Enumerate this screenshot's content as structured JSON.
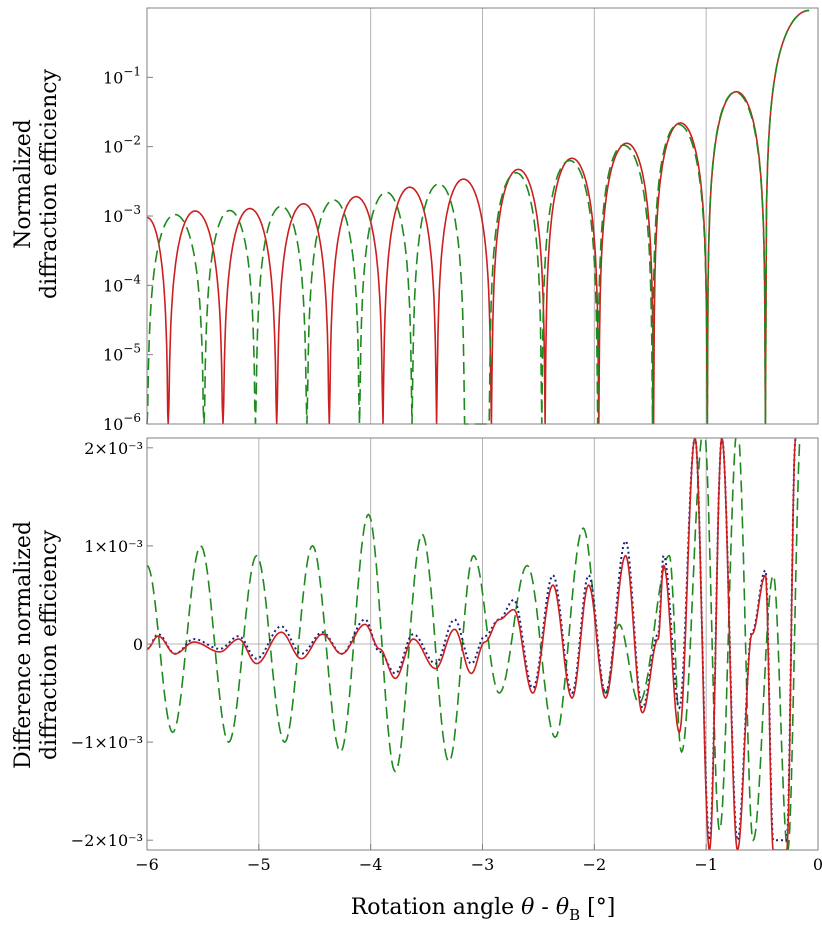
{
  "chart_data": [
    {
      "type": "line",
      "id": "top",
      "yscale": "log",
      "ylabel_lines": [
        "Normalized",
        "diffraction efficiency"
      ],
      "xlim": [
        -6,
        0
      ],
      "ylim": [
        1e-06,
        1
      ],
      "ytick_exponents": [
        "-1",
        "-2",
        "-3",
        "-4",
        "-5",
        "-6"
      ],
      "ytick_base": "10",
      "xgrid": [
        -4,
        -3,
        -2,
        -1
      ],
      "series": [
        {
          "name": "red-solid",
          "color": "#cc1f1f",
          "dash": "",
          "zeros": [
            -5.81,
            -5.32,
            -4.84,
            -4.37,
            -3.89,
            -3.41,
            -2.92,
            -2.44,
            -1.96,
            -1.47,
            -0.99,
            -0.47
          ],
          "peaks": [
            [
              -6.0,
              0.00095
            ],
            [
              -5.57,
              0.00118
            ],
            [
              -5.08,
              0.00128
            ],
            [
              -4.6,
              0.0015
            ],
            [
              -4.13,
              0.0019
            ],
            [
              -3.65,
              0.0026
            ],
            [
              -3.17,
              0.0034
            ],
            [
              -2.68,
              0.0047
            ],
            [
              -2.2,
              0.0068
            ],
            [
              -1.71,
              0.0112
            ],
            [
              -1.23,
              0.022
            ],
            [
              -0.73,
              0.062
            ],
            [
              -0.08,
              0.92
            ]
          ]
        },
        {
          "name": "green-dashed",
          "color": "#1e8a1e",
          "dash": "12,6",
          "zeros": [
            -6.0,
            -5.49,
            -5.03,
            -4.57,
            -4.1,
            -3.63,
            -3.16,
            -2.94,
            -2.47,
            -1.97,
            -1.48,
            -0.99,
            -0.47
          ],
          "peaks": [
            [
              -5.75,
              0.00105
            ],
            [
              -5.26,
              0.0012
            ],
            [
              -4.8,
              0.00138
            ],
            [
              -4.33,
              0.0017
            ],
            [
              -3.86,
              0.0022
            ],
            [
              -3.39,
              0.0029
            ],
            [
              -2.7,
              0.0042
            ],
            [
              -2.22,
              0.0063
            ],
            [
              -1.74,
              0.0105
            ],
            [
              -1.25,
              0.021
            ],
            [
              -0.74,
              0.061
            ],
            [
              -0.08,
              0.92
            ]
          ]
        }
      ]
    },
    {
      "type": "line",
      "id": "bottom",
      "yscale": "linear",
      "ylabel_lines": [
        "Difference normalized",
        "diffraction efficiency"
      ],
      "xlabel": "Rotation angle",
      "xlabel_theta": "θ",
      "xlabel_minus": " - ",
      "xlabel_thetaB": "θ",
      "xlabel_sub": "B",
      "xlabel_unit": " [°]",
      "xlim": [
        -6,
        0
      ],
      "ylim": [
        -0.0021,
        0.0021
      ],
      "xticks": [
        "−6",
        "−5",
        "−4",
        "−3",
        "−2",
        "−1",
        "0"
      ],
      "ytick_labels": [
        "2×10⁻³",
        "1×10⁻³",
        "0",
        "−1×10⁻³",
        "−2×10⁻³"
      ],
      "xgrid": [
        -5,
        -4,
        -3,
        -2,
        -1
      ],
      "series": [
        {
          "name": "green-dashed",
          "color": "#1e8a1e",
          "dash": "12,6",
          "extrema": [
            [
              -6.0,
              0.0008
            ],
            [
              -5.77,
              -0.0009
            ],
            [
              -5.52,
              0.001
            ],
            [
              -5.27,
              -0.001
            ],
            [
              -5.02,
              0.0009
            ],
            [
              -4.77,
              -0.001
            ],
            [
              -4.52,
              0.001
            ],
            [
              -4.27,
              -0.0011
            ],
            [
              -4.02,
              0.00132
            ],
            [
              -3.78,
              -0.0013
            ],
            [
              -3.54,
              0.00112
            ],
            [
              -3.3,
              -0.0012
            ],
            [
              -3.08,
              0.0009
            ],
            [
              -2.85,
              -0.0005
            ],
            [
              -2.6,
              0.0008
            ],
            [
              -2.35,
              -0.00095
            ],
            [
              -2.1,
              0.00118
            ],
            [
              -1.9,
              -0.0005
            ],
            [
              -1.78,
              0.0002
            ],
            [
              -1.6,
              -0.0006
            ],
            [
              -1.33,
              0.0009
            ],
            [
              -1.22,
              -0.0011
            ],
            [
              -1.02,
              0.0022
            ],
            [
              -0.88,
              -0.0019
            ],
            [
              -0.72,
              0.0022
            ],
            [
              -0.58,
              -0.002
            ],
            [
              -0.4,
              0.0007
            ],
            [
              -0.27,
              -0.0021
            ],
            [
              -0.15,
              0.0022
            ]
          ]
        },
        {
          "name": "blue-dotted",
          "color": "#1a237e",
          "dash": "2,3",
          "extrema": [
            [
              -6.0,
              -5e-05
            ],
            [
              -5.9,
              0.0001
            ],
            [
              -5.75,
              -0.0001
            ],
            [
              -5.58,
              5e-05
            ],
            [
              -5.35,
              -5e-05
            ],
            [
              -5.18,
              8e-05
            ],
            [
              -5.02,
              -0.00015
            ],
            [
              -4.8,
              0.00018
            ],
            [
              -4.62,
              -0.0001
            ],
            [
              -4.43,
              0.00012
            ],
            [
              -4.26,
              -0.0001
            ],
            [
              -4.05,
              0.00025
            ],
            [
              -3.92,
              -8e-05
            ],
            [
              -3.78,
              -0.0003
            ],
            [
              -3.62,
              0.0001
            ],
            [
              -3.42,
              -0.0002
            ],
            [
              -3.25,
              0.00025
            ],
            [
              -3.1,
              -0.0002
            ],
            [
              -2.98,
              8e-05
            ],
            [
              -2.85,
              0.00025
            ],
            [
              -2.72,
              0.00045
            ],
            [
              -2.55,
              -0.00045
            ],
            [
              -2.37,
              0.0007
            ],
            [
              -2.2,
              -0.0005
            ],
            [
              -2.05,
              0.0007
            ],
            [
              -1.9,
              -0.0005
            ],
            [
              -1.72,
              0.00105
            ],
            [
              -1.57,
              -0.00065
            ],
            [
              -1.43,
              0.0001
            ],
            [
              -1.38,
              0.0009
            ],
            [
              -1.24,
              -0.00065
            ],
            [
              -1.1,
              0.0021
            ],
            [
              -0.97,
              -0.002
            ],
            [
              -0.86,
              0.0021
            ],
            [
              -0.72,
              -0.002
            ],
            [
              -0.59,
              0.00012
            ],
            [
              -0.47,
              0.00075
            ],
            [
              -0.4,
              -0.002
            ],
            [
              -0.28,
              -0.002
            ],
            [
              -0.2,
              0.0021
            ]
          ]
        },
        {
          "name": "red-solid",
          "color": "#cc1f1f",
          "dash": "",
          "extrema": [
            [
              -6.0,
              -5e-05
            ],
            [
              -5.9,
              8e-05
            ],
            [
              -5.75,
              -0.0001
            ],
            [
              -5.58,
              2e-05
            ],
            [
              -5.35,
              -8e-05
            ],
            [
              -5.18,
              5e-05
            ],
            [
              -5.02,
              -0.0002
            ],
            [
              -4.8,
              0.00012
            ],
            [
              -4.62,
              -0.00015
            ],
            [
              -4.43,
              0.0001
            ],
            [
              -4.26,
              -0.0001
            ],
            [
              -4.05,
              0.0002
            ],
            [
              -3.92,
              -5e-05
            ],
            [
              -3.78,
              -0.00035
            ],
            [
              -3.62,
              5e-05
            ],
            [
              -3.42,
              -0.00025
            ],
            [
              -3.25,
              0.00015
            ],
            [
              -3.1,
              -0.0003
            ],
            [
              -2.98,
              2e-05
            ],
            [
              -2.85,
              0.00025
            ],
            [
              -2.72,
              0.00035
            ],
            [
              -2.55,
              -0.0005
            ],
            [
              -2.37,
              0.0006
            ],
            [
              -2.2,
              -0.00055
            ],
            [
              -2.05,
              0.0006
            ],
            [
              -1.9,
              -0.00055
            ],
            [
              -1.72,
              0.0009
            ],
            [
              -1.57,
              -0.0007
            ],
            [
              -1.43,
              5e-05
            ],
            [
              -1.38,
              0.0008
            ],
            [
              -1.24,
              -0.0009
            ],
            [
              -1.1,
              0.0021
            ],
            [
              -0.97,
              -0.0021
            ],
            [
              -0.86,
              0.0021
            ],
            [
              -0.72,
              -0.0021
            ],
            [
              -0.59,
              0.0001
            ],
            [
              -0.47,
              0.0007
            ],
            [
              -0.4,
              -0.0021
            ],
            [
              -0.28,
              -0.0021
            ],
            [
              -0.2,
              0.0021
            ]
          ]
        }
      ]
    }
  ]
}
